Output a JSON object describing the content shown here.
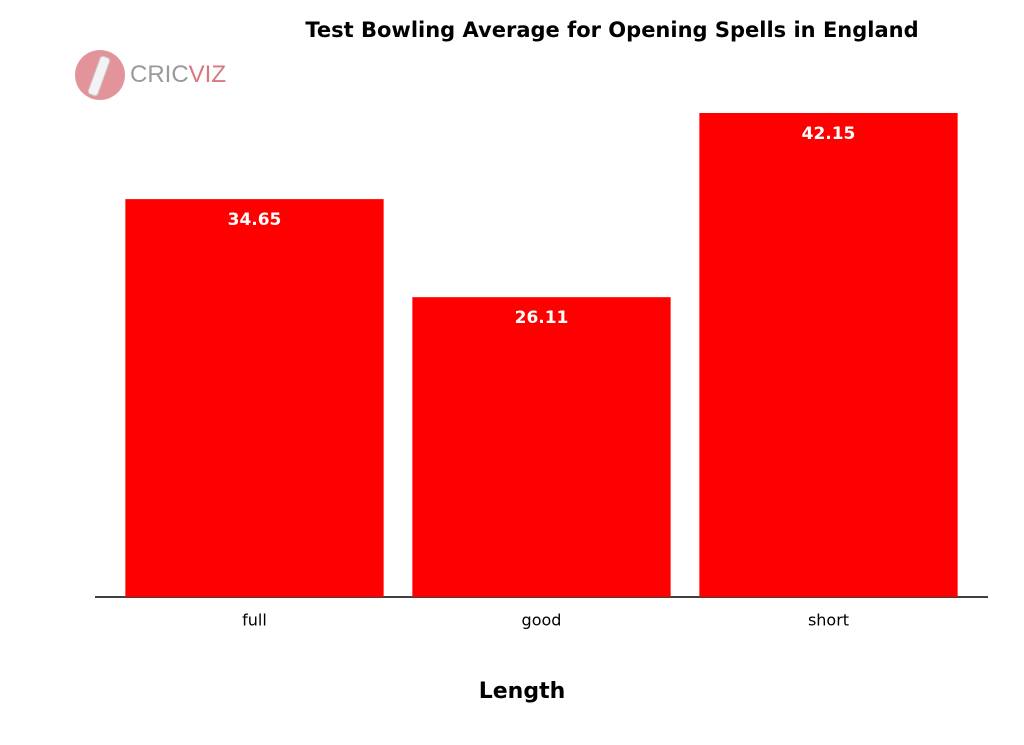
{
  "chart_data": {
    "type": "bar",
    "title": "Test Bowling Average for Opening Spells in England",
    "logo": [
      "CRIC",
      "VIZ"
    ],
    "xlabel": "Length",
    "categories": [
      "full",
      "good",
      "short"
    ],
    "values": [
      34.65,
      26.11,
      42.15
    ],
    "color": "#ff0000"
  }
}
